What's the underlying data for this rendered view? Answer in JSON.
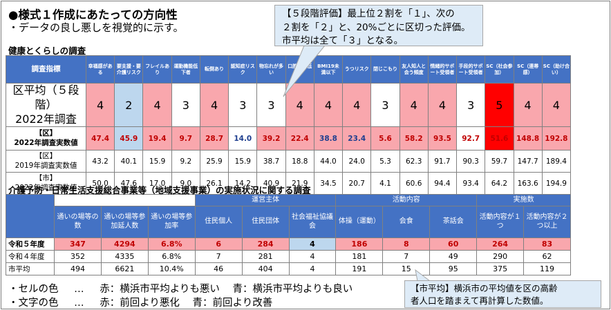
{
  "header": {
    "title": "●様式１作成にあたっての方向性",
    "subtitle": "・データの良し悪しを視覚的に示す。"
  },
  "health": {
    "section_label": "健康とくらしの調査",
    "corner_label": "調査指標",
    "columns": [
      "幸福感がある",
      "要支援・要介護リスク",
      "フレイルあり",
      "運動機能低下者",
      "転倒あり",
      "認知症リスク",
      "物忘れが多い",
      "口腔機能低下",
      "BMI19未満以下",
      "うつリスク",
      "閉じこもり",
      "友人知人と会う頻度",
      "情緒的サポート受領者",
      "手段的サポート受領者",
      "SC（社会参加）",
      "SC（連帯感）",
      "SC（助け合い）"
    ],
    "rows": [
      {
        "label_line1": "区平均（５段階）",
        "label_line2": "2022年調査",
        "bold": false,
        "values": [
          "4",
          "2",
          "4",
          "3",
          "4",
          "3",
          "3",
          "4",
          "4",
          "4",
          "3",
          "4",
          "4",
          "3",
          "5",
          "4",
          "4"
        ]
      },
      {
        "label_line1": "【区】",
        "label_line2": "2022年調査実数値",
        "bold": true,
        "values": [
          "47.4",
          "45.9",
          "19.4",
          "9.7",
          "28.7",
          "14.0",
          "39.2",
          "22.4",
          "38.8",
          "23.4",
          "5.6",
          "58.2",
          "93.5",
          "92.7",
          "51.6",
          "148.8",
          "192.8"
        ]
      },
      {
        "label_line1": "【区】",
        "label_line2": "2019年調査実数値",
        "bold": false,
        "values": [
          "43.2",
          "40.1",
          "15.9",
          "9.2",
          "25.9",
          "15.9",
          "38.7",
          "18.8",
          "44.0",
          "24.0",
          "5.3",
          "62.3",
          "91.7",
          "90.3",
          "59.7",
          "147.7",
          "189.4"
        ]
      },
      {
        "label_line1": "【市】",
        "label_line2": "2022年調査実数値",
        "bold": false,
        "values": [
          "50.0",
          "47.6",
          "17.0",
          "9.0",
          "26.1",
          "14.2",
          "40.9",
          "21.9",
          "34.5",
          "20.7",
          "4.1",
          "60.6",
          "94.4",
          "93.4",
          "64.2",
          "163.6",
          "194.9"
        ]
      }
    ],
    "cell_colors": {
      "row0": [
        "red",
        "blu",
        "red",
        "",
        "red",
        "",
        "",
        "red",
        "red",
        "red",
        "",
        "red",
        "red",
        "",
        "dred",
        "red",
        "red"
      ],
      "row1": [
        "red",
        "blu",
        "red",
        "red",
        "red",
        "",
        "red",
        "red",
        "red",
        "red",
        "red",
        "red",
        "red",
        "",
        "dred",
        "red",
        "red"
      ]
    },
    "text_colors": {
      "row1": [
        "tred",
        "tred",
        "tred",
        "tred",
        "tred",
        "tblue",
        "tred",
        "tred",
        "tblue",
        "tblue",
        "tred",
        "tred",
        "tred",
        "tred",
        "tred",
        "tred",
        "tred"
      ]
    }
  },
  "care": {
    "section_label": "介護予防・日常生活支援総合事業等（地域支援事業）の実施状況に関する調査",
    "group_headers": {
      "operator": "運営主体",
      "activity": "活動内容",
      "count": "実施数"
    },
    "columns": [
      "通いの場等の数",
      "通いの場等参加延人数",
      "通いの場等参加率",
      "住民個人",
      "住民団体",
      "社会福祉協議会",
      "体操（運動）",
      "会食",
      "茶話会",
      "活動内容が１つ",
      "活動内容が２つ以上"
    ],
    "rows": [
      {
        "label": "令和５年度",
        "values": [
          "347",
          "4294",
          "6.8%",
          "6",
          "284",
          "4",
          "186",
          "8",
          "60",
          "264",
          "83"
        ]
      },
      {
        "label": "令和４年度",
        "values": [
          "352",
          "4335",
          "6.8%",
          "7",
          "281",
          "4",
          "181",
          "7",
          "49",
          "290",
          "62"
        ]
      },
      {
        "label": "市平均",
        "values": [
          "494",
          "6621",
          "10.4%",
          "46",
          "404",
          "4",
          "191",
          "15",
          "95",
          "375",
          "119"
        ]
      }
    ],
    "cell_colors": {
      "row0": [
        "red",
        "red",
        "red",
        "red",
        "red",
        "blu",
        "red",
        "red",
        "red",
        "red",
        "red"
      ]
    }
  },
  "legend": {
    "cell_label": "・セルの色",
    "cell_dots": "…",
    "cell_red": "赤：横浜市平均よりも悪い",
    "cell_blue": "青：横浜市平均よりも良い",
    "text_label": "・文字の色",
    "text_dots": "…",
    "text_red": "赤：前回より悪化",
    "text_blue": "青：前回より改善"
  },
  "callouts": {
    "top_line1": "【５段階評価】最上位２割を「１」、次の",
    "top_line2": "２割を「２」と、20%ごとに区切った評価。",
    "top_line3": "市平均は全て「３」となる。",
    "bottom_line1": "【市平均】横浜市の平均値を区の高齢",
    "bottom_line2": "者人口を踏まえて再計算した数値。"
  },
  "colors": {
    "header_blue": "#4472c4",
    "cell_red": "#f9a7ad",
    "cell_dark_red": "#ff0000",
    "cell_blue": "#bdd7ee",
    "callout_bg": "#deebf7"
  }
}
